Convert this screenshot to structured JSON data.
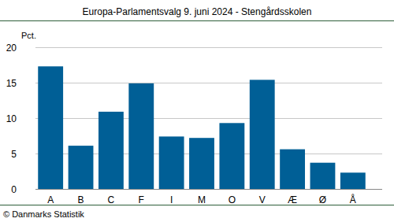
{
  "chart_data": {
    "type": "bar",
    "title": "Europa-Parlamentsvalg 9. juni 2024 - Stengårdsskolen",
    "ylabel": "Pct.",
    "source": "© Danmarks Statistik",
    "categories": [
      "A",
      "B",
      "C",
      "F",
      "I",
      "M",
      "O",
      "V",
      "Æ",
      "Ø",
      "Å"
    ],
    "values": [
      17.3,
      6.1,
      10.9,
      14.9,
      7.4,
      7.2,
      9.3,
      15.4,
      5.6,
      3.7,
      2.3
    ],
    "color": "#005f96",
    "ylim": [
      0,
      20
    ],
    "yticks": [
      0,
      5,
      10,
      15,
      20
    ],
    "grid": true
  }
}
